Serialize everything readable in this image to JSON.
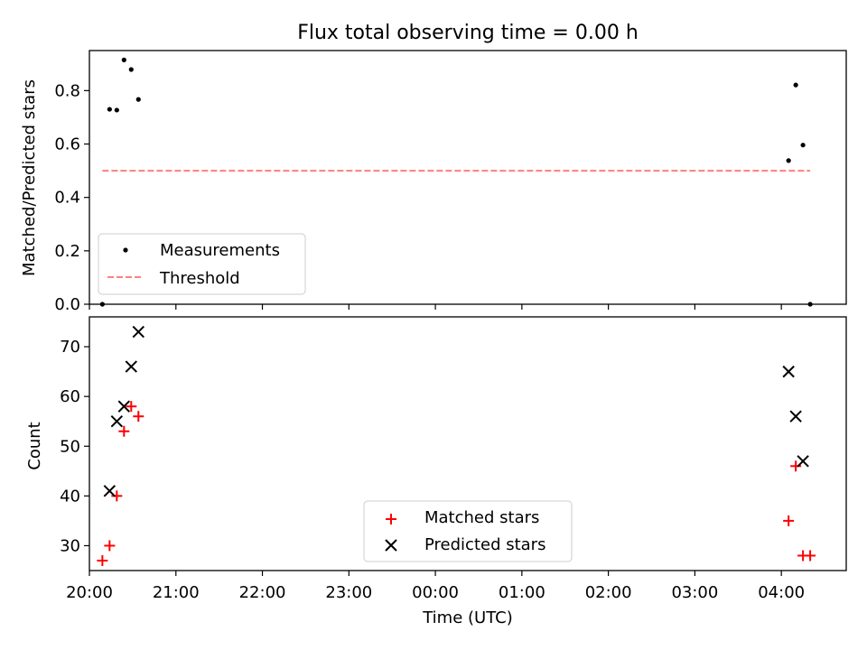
{
  "chart_data": [
    {
      "type": "scatter",
      "title": "Flux total observing time = 0.00 h",
      "xlabel": "",
      "ylabel": "Matched/Predicted stars",
      "xlim": [
        "20:00",
        "04:45"
      ],
      "ylim": [
        0,
        0.95
      ],
      "yticks": [
        "0.0",
        "0.2",
        "0.4",
        "0.6",
        "0.8"
      ],
      "grid": false,
      "legend_position": "lower-left",
      "series": [
        {
          "name": "Measurements",
          "marker": "dot",
          "color": "#000000",
          "points": [
            {
              "x": "20:09",
              "y": 0.0
            },
            {
              "x": "20:14",
              "y": 0.73
            },
            {
              "x": "20:19",
              "y": 0.727
            },
            {
              "x": "20:24",
              "y": 0.915
            },
            {
              "x": "20:29",
              "y": 0.879
            },
            {
              "x": "20:34",
              "y": 0.767
            },
            {
              "x": "04:05",
              "y": 0.538
            },
            {
              "x": "04:10",
              "y": 0.821
            },
            {
              "x": "04:15",
              "y": 0.596
            },
            {
              "x": "04:20",
              "y": 0.0
            }
          ]
        },
        {
          "name": "Threshold",
          "style": "dashed-line",
          "color": "#ff7f7f",
          "points": [
            {
              "x": "20:09",
              "y": 0.5
            },
            {
              "x": "04:20",
              "y": 0.5
            }
          ]
        }
      ]
    },
    {
      "type": "scatter",
      "title": "",
      "xlabel": "Time (UTC)",
      "ylabel": "Count",
      "xlim": [
        "20:00",
        "04:45"
      ],
      "ylim": [
        25,
        76
      ],
      "xticks": [
        "20:00",
        "21:00",
        "22:00",
        "23:00",
        "00:00",
        "01:00",
        "02:00",
        "03:00",
        "04:00"
      ],
      "yticks": [
        "30",
        "40",
        "50",
        "60",
        "70"
      ],
      "grid": false,
      "legend_position": "lower-center",
      "series": [
        {
          "name": "Matched stars",
          "marker": "plus",
          "color": "#ff0000",
          "points": [
            {
              "x": "20:09",
              "y": 27
            },
            {
              "x": "20:14",
              "y": 30
            },
            {
              "x": "20:19",
              "y": 40
            },
            {
              "x": "20:24",
              "y": 53
            },
            {
              "x": "20:29",
              "y": 58
            },
            {
              "x": "20:34",
              "y": 56
            },
            {
              "x": "04:05",
              "y": 35
            },
            {
              "x": "04:10",
              "y": 46
            },
            {
              "x": "04:15",
              "y": 28
            },
            {
              "x": "04:20",
              "y": 28
            }
          ]
        },
        {
          "name": "Predicted stars",
          "marker": "x",
          "color": "#000000",
          "points": [
            {
              "x": "20:14",
              "y": 41
            },
            {
              "x": "20:19",
              "y": 55
            },
            {
              "x": "20:24",
              "y": 58
            },
            {
              "x": "20:29",
              "y": 66
            },
            {
              "x": "20:34",
              "y": 73
            },
            {
              "x": "04:05",
              "y": 65
            },
            {
              "x": "04:10",
              "y": 56
            },
            {
              "x": "04:15",
              "y": 47
            }
          ]
        }
      ]
    }
  ]
}
